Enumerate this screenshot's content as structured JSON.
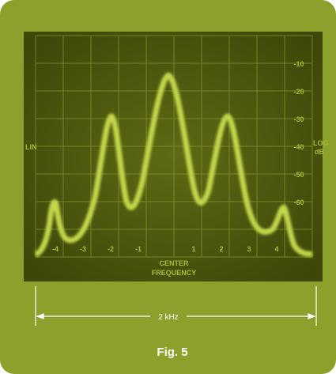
{
  "screen": {
    "x_labels": [
      "-4",
      "-3",
      "-2",
      "-1",
      "1",
      "2",
      "3",
      "4"
    ],
    "db_labels": [
      "-10",
      "-20",
      "-30",
      "-40",
      "-50",
      "-60"
    ],
    "left_label": "LIN",
    "right_label": [
      "LOG",
      "dB"
    ],
    "center_label": [
      "CENTER",
      "FREQUENCY"
    ]
  },
  "span_label": "2 kHz",
  "caption": "Fig. 5"
}
